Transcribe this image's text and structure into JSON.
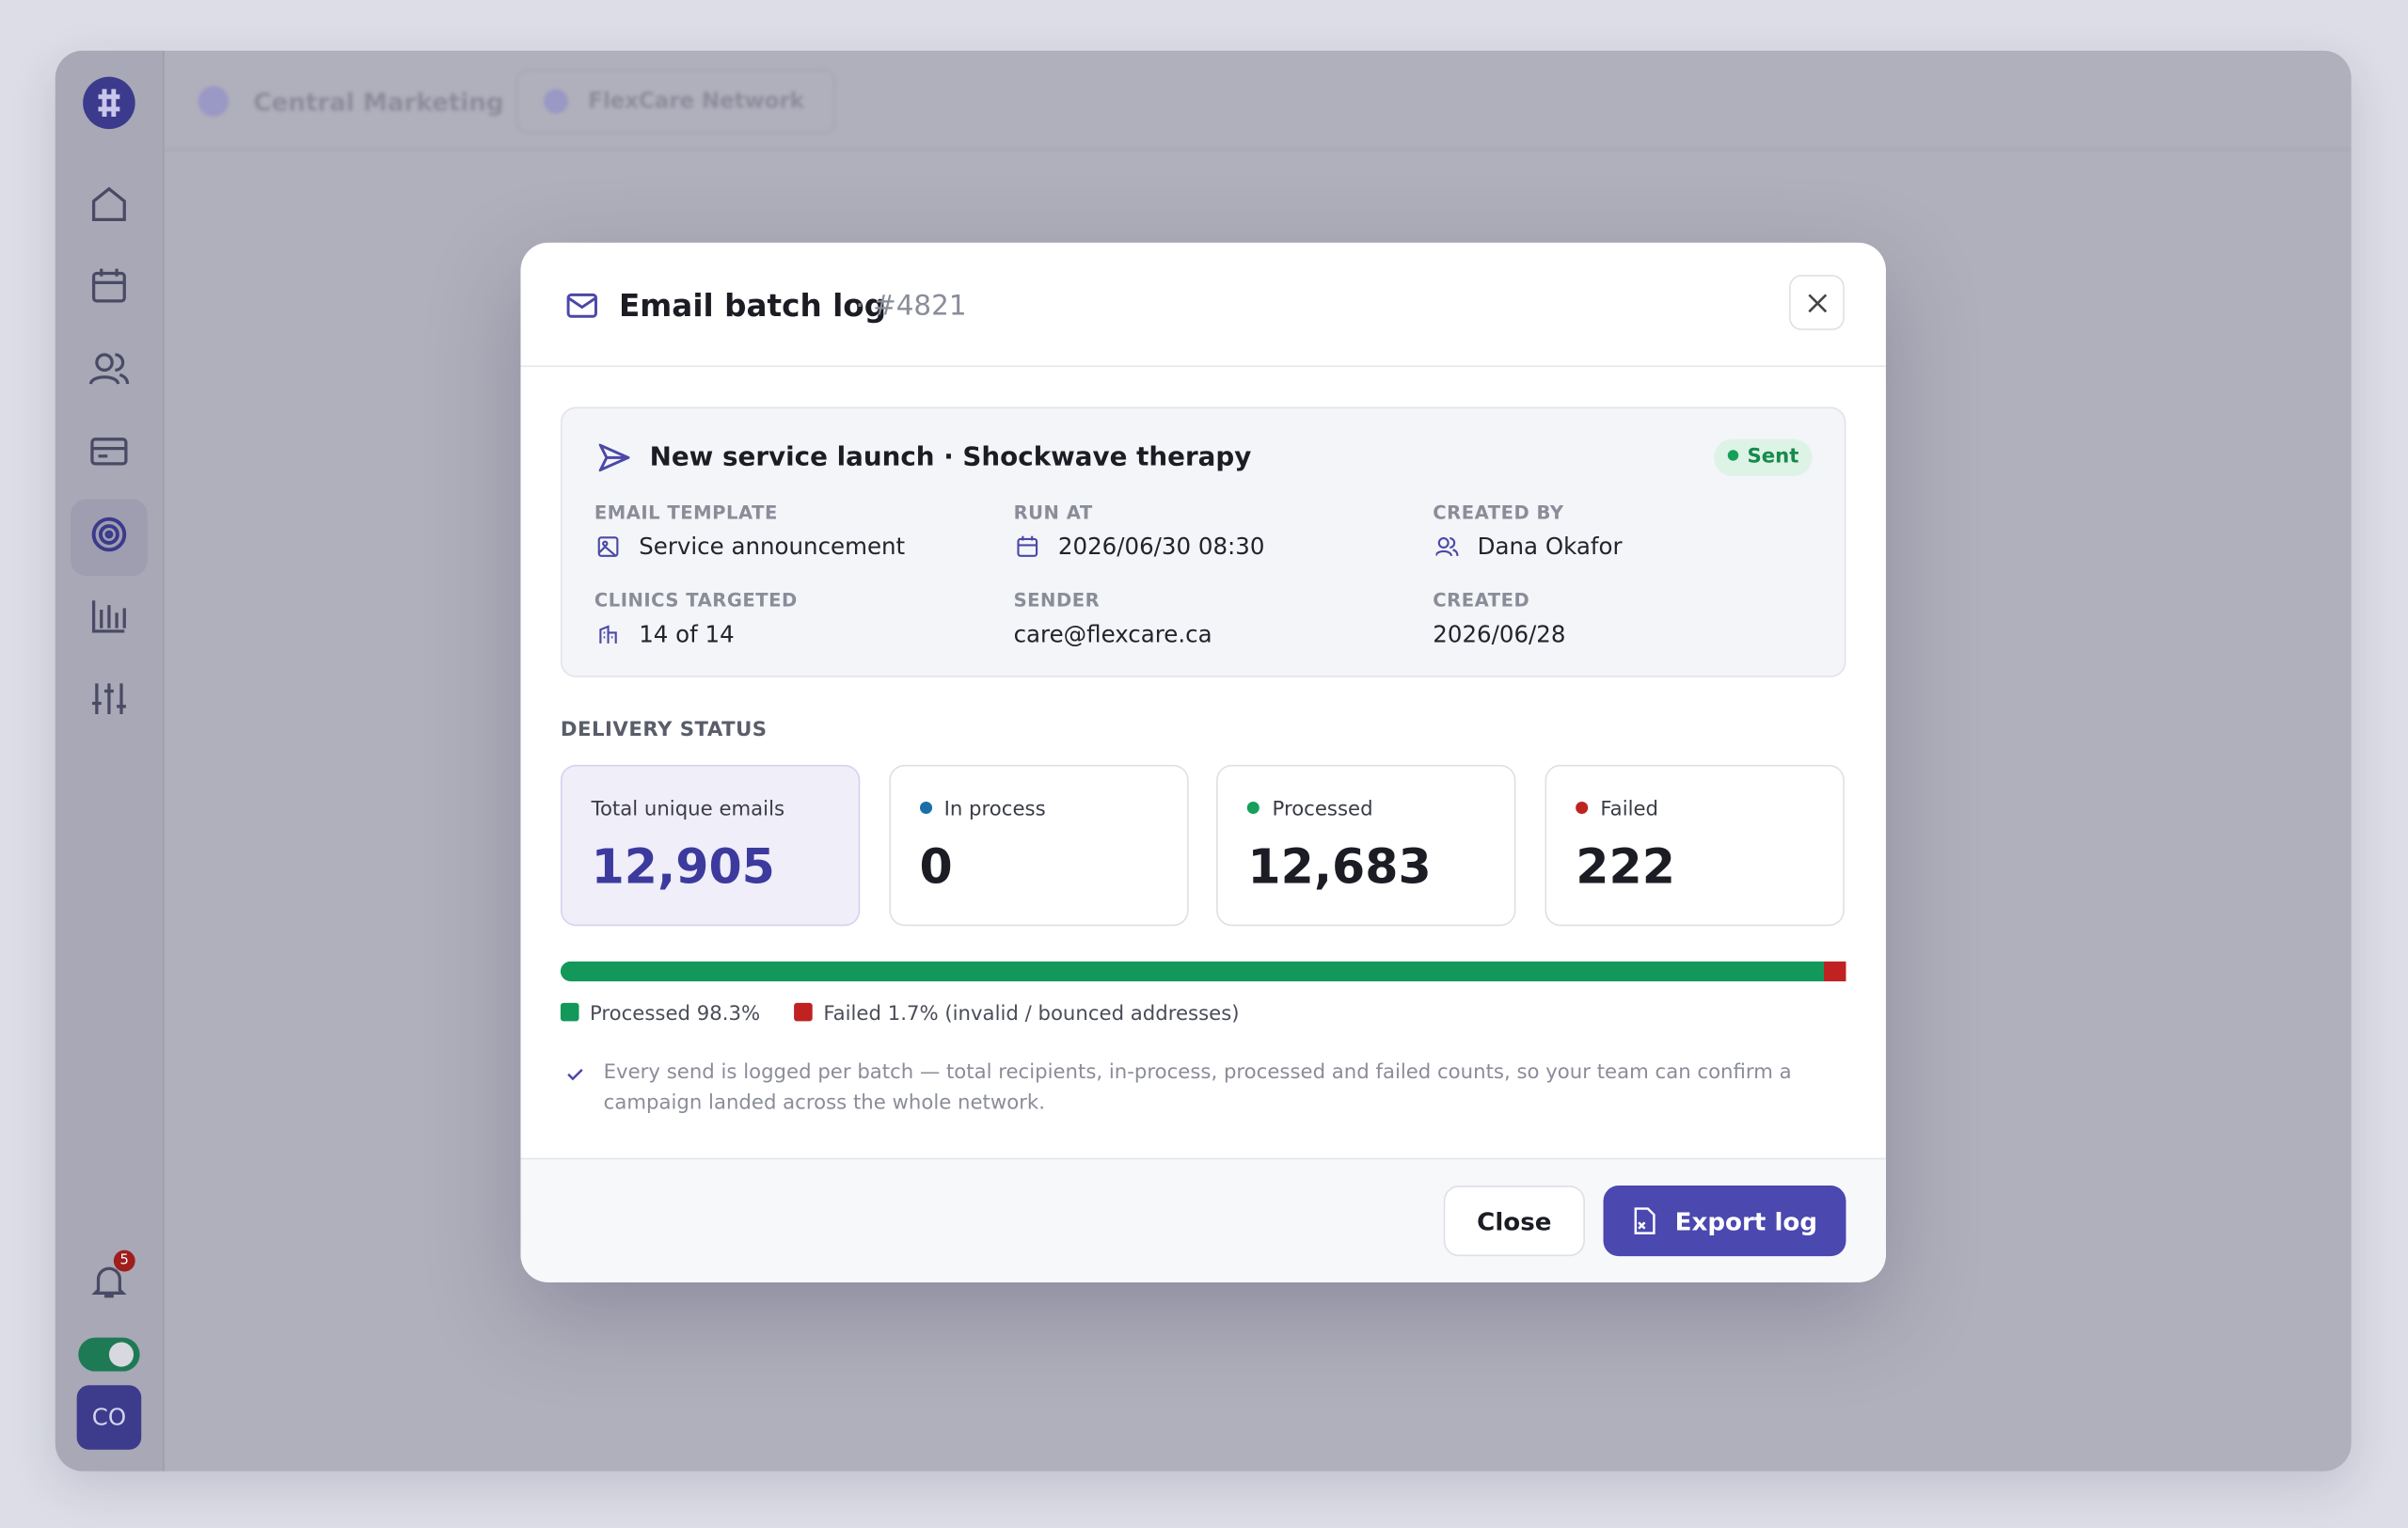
{
  "sidebar": {
    "notification_count": "5",
    "avatar": "CO"
  },
  "topbar": {
    "workspace": "Central Marketing",
    "network": "FlexCare Network"
  },
  "modal": {
    "title": "Email batch log",
    "id": "· #4821",
    "campaign": {
      "name": "New service launch · Shockwave therapy",
      "status": "Sent",
      "fields": [
        {
          "label": "EMAIL TEMPLATE",
          "value": "Service announcement"
        },
        {
          "label": "RUN AT",
          "value": "2026/06/30 08:30"
        },
        {
          "label": "CREATED BY",
          "value": "Dana Okafor"
        },
        {
          "label": "CLINICS TARGETED",
          "value": "14 of 14"
        },
        {
          "label": "SENDER",
          "value": "care@flexcare.ca"
        },
        {
          "label": "CREATED",
          "value": "2026/06/28"
        }
      ]
    },
    "section_title": "DELIVERY STATUS",
    "stats": [
      {
        "label": "Total unique emails",
        "value": 12905,
        "value_label": "12,905"
      },
      {
        "label": "In process",
        "value": 0,
        "value_label": "0"
      },
      {
        "label": "Processed",
        "value": 12683,
        "value_label": "12,683"
      },
      {
        "label": "Failed",
        "value": 222,
        "value_label": "222"
      }
    ],
    "legend": [
      "Processed 98.3%",
      "Failed 1.7% (invalid / bounced addresses)"
    ],
    "note": "Every send is logged per batch — total recipients, in-process, processed and failed counts, so your team can confirm a campaign landed across the whole network.",
    "buttons": {
      "close": "Close",
      "export": "Export log"
    }
  }
}
